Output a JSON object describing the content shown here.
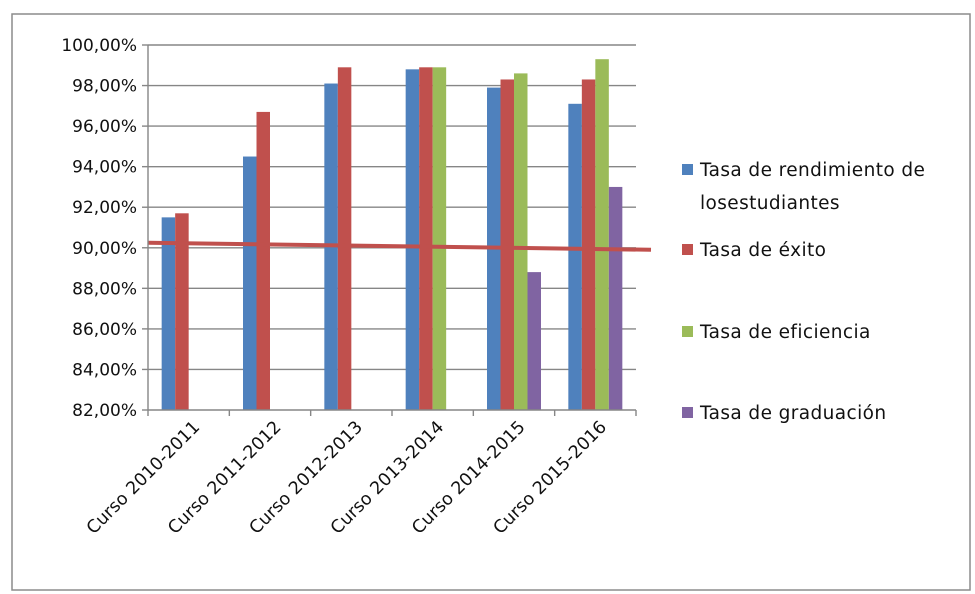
{
  "chart_data": {
    "type": "bar",
    "title": "",
    "xlabel": "",
    "ylabel": "",
    "categories": [
      "Curso 2010-2011",
      "Curso 2011-2012",
      "Curso 2012-2013",
      "Curso 2013-2014",
      "Curso 2014-2015",
      "Curso 2015-2016"
    ],
    "series": [
      {
        "name": "Tasa de rendimiento de losestudiantes",
        "color": "#4f81bd",
        "values": [
          91.5,
          94.5,
          98.1,
          98.8,
          97.9,
          97.1
        ]
      },
      {
        "name": "Tasa de éxito",
        "color": "#c0504d",
        "values": [
          91.7,
          96.7,
          98.9,
          98.9,
          98.3,
          98.3
        ]
      },
      {
        "name": "Tasa de eficiencia",
        "color": "#9bbb59",
        "values": [
          null,
          null,
          null,
          98.9,
          98.6,
          99.3
        ]
      },
      {
        "name": "Tasa de graduación",
        "color": "#8064a2",
        "values": [
          null,
          null,
          null,
          null,
          88.8,
          93.0
        ]
      }
    ],
    "legend_lines": [
      [
        "Tasa de rendimiento de",
        "losestudiantes"
      ],
      [
        "Tasa de éxito"
      ],
      [
        "Tasa de eficiencia"
      ],
      [
        "Tasa de graduación"
      ]
    ],
    "y_ticks": [
      "82,00%",
      "84,00%",
      "86,00%",
      "88,00%",
      "90,00%",
      "92,00%",
      "94,00%",
      "96,00%",
      "98,00%",
      "100,00%"
    ],
    "ylim": [
      82,
      100
    ],
    "grid": true,
    "legend_position": "right",
    "reference_line": {
      "value": 90,
      "color": "#c0504d"
    }
  }
}
